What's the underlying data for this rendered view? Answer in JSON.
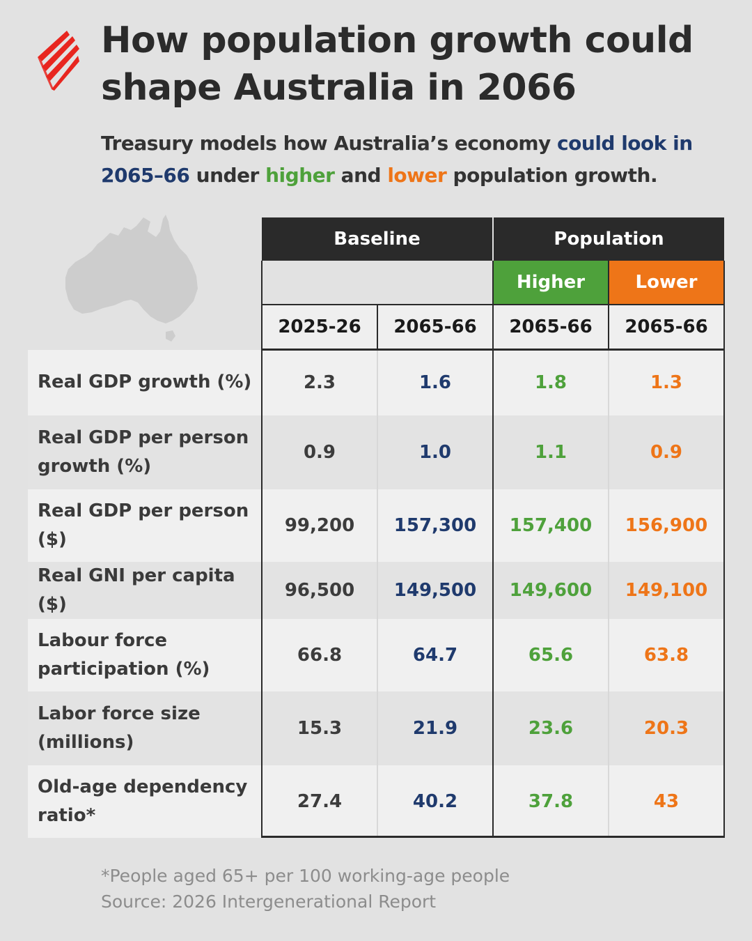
{
  "title": "How population growth could shape Australia in 2066",
  "subtitle": {
    "part1": "Treasury models how Australia’s economy ",
    "highlight_blue": "could look in 2065–66",
    "part2": " under ",
    "highlight_green": "higher",
    "part3": " and ",
    "highlight_orange": "lower",
    "part4": " population growth."
  },
  "colors": {
    "baseline_2065": "#1f3a6d",
    "higher": "#4ea13b",
    "lower": "#ee7518",
    "header_dark": "#2a2a2a",
    "logo_red": "#e8261f"
  },
  "icons": [
    "sbs-logo-icon",
    "australia-map-icon"
  ],
  "chart_data": {
    "type": "table",
    "group_headers": [
      "Baseline",
      "Population"
    ],
    "subgroup_headers": [
      "Higher",
      "Lower"
    ],
    "columns": [
      "2025-26",
      "2065-66",
      "2065-66",
      "2065-66"
    ],
    "rows": [
      {
        "label": "Real GDP growth (%)",
        "values": [
          "2.3",
          "1.6",
          "1.8",
          "1.3"
        ]
      },
      {
        "label": "Real GDP per person growth (%)",
        "values": [
          "0.9",
          "1.0",
          "1.1",
          "0.9"
        ]
      },
      {
        "label": "Real GDP per person ($)",
        "values": [
          "99,200",
          "157,300",
          "157,400",
          "156,900"
        ]
      },
      {
        "label": "Real GNI per capita ($)",
        "values": [
          "96,500",
          "149,500",
          "149,600",
          "149,100"
        ]
      },
      {
        "label": "Labour force participation (%)",
        "values": [
          "66.8",
          "64.7",
          "65.6",
          "63.8"
        ]
      },
      {
        "label": "Labor force size (millions)",
        "values": [
          "15.3",
          "21.9",
          "23.6",
          "20.3"
        ]
      },
      {
        "label": "Old-age dependency ratio*",
        "values": [
          "27.4",
          "40.2",
          "37.8",
          "43"
        ]
      }
    ]
  },
  "footnote": "*People aged 65+ per 100 working-age people",
  "source": "Source: 2026 Intergenerational Report"
}
